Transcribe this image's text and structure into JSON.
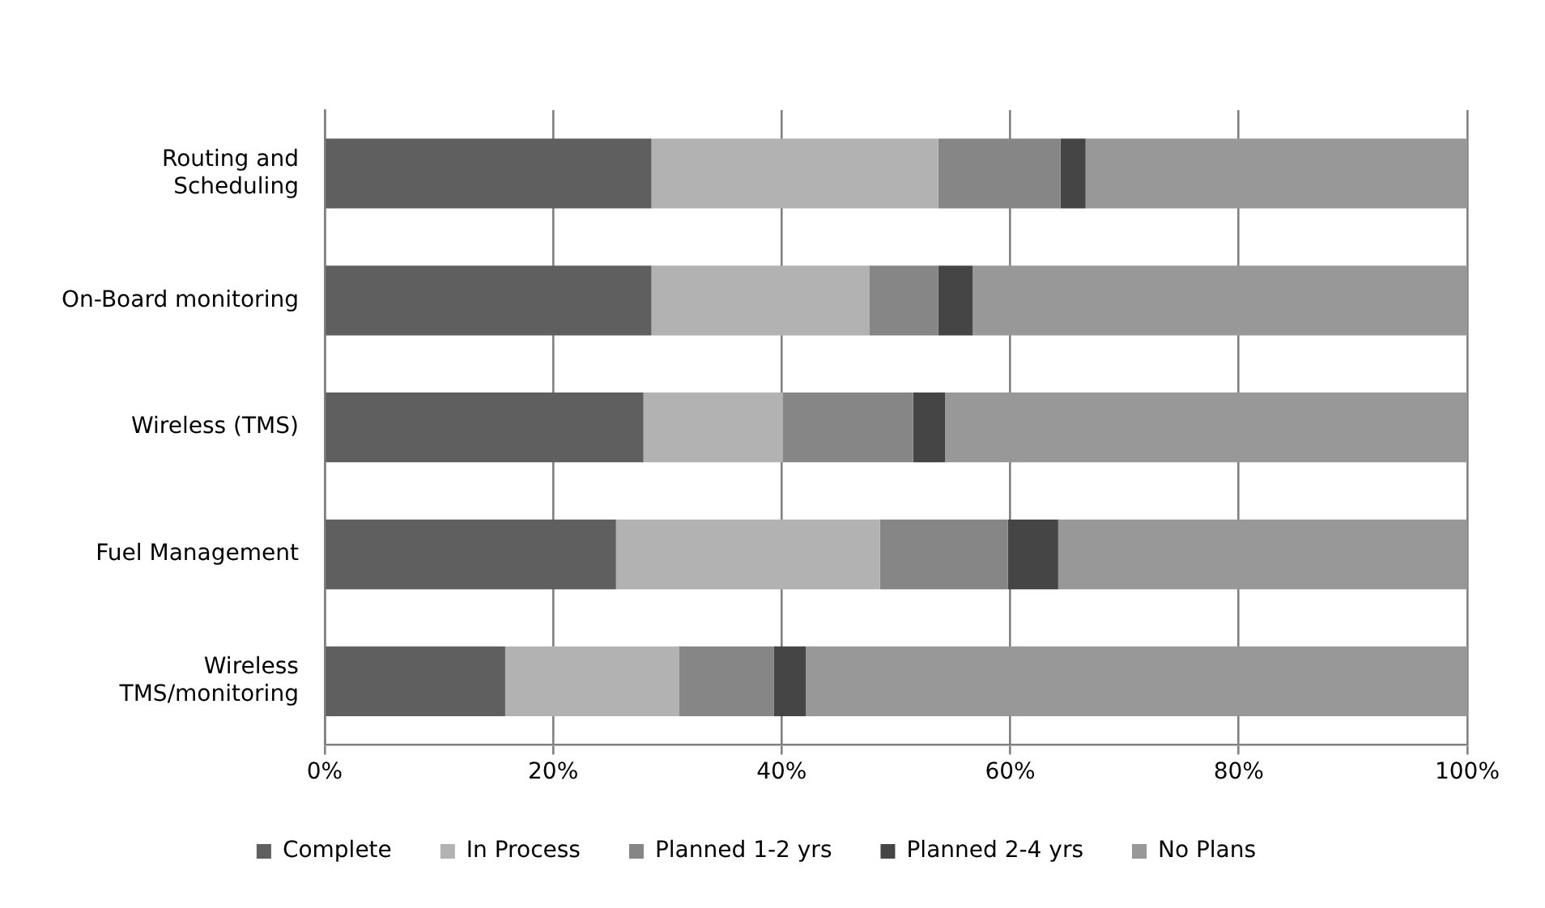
{
  "chart_data": {
    "type": "bar",
    "orientation": "horizontal",
    "stacked": true,
    "categories": [
      "Routing and Scheduling",
      "On-Board monitoring",
      "Wireless (TMS)",
      "Fuel Management",
      "Wireless TMS/monitoring"
    ],
    "series": [
      {
        "name": "Complete",
        "color": "#5f5f5f",
        "values": [
          28.6,
          28.6,
          27.9,
          25.5,
          15.8
        ]
      },
      {
        "name": "In Process",
        "color": "#b2b2b2",
        "values": [
          25.1,
          19.1,
          12.2,
          23.1,
          15.2
        ]
      },
      {
        "name": "Planned 1-2 yrs",
        "color": "#868686",
        "values": [
          10.7,
          6.0,
          11.4,
          11.2,
          8.3
        ]
      },
      {
        "name": "Planned 2-4 yrs",
        "color": "#454545",
        "values": [
          2.2,
          3.0,
          2.8,
          4.4,
          2.8
        ]
      },
      {
        "name": "No Plans",
        "color": "#989898",
        "values": [
          33.4,
          43.3,
          45.7,
          35.8,
          57.9
        ]
      }
    ],
    "xlim": [
      0,
      100
    ],
    "xticks": [
      {
        "value": 0,
        "label": "0%"
      },
      {
        "value": 20,
        "label": "20%"
      },
      {
        "value": 40,
        "label": "40%"
      },
      {
        "value": 60,
        "label": "60%"
      },
      {
        "value": 80,
        "label": "80%"
      },
      {
        "value": 100,
        "label": "100%"
      }
    ],
    "grid": "x",
    "legend": "bottom"
  }
}
